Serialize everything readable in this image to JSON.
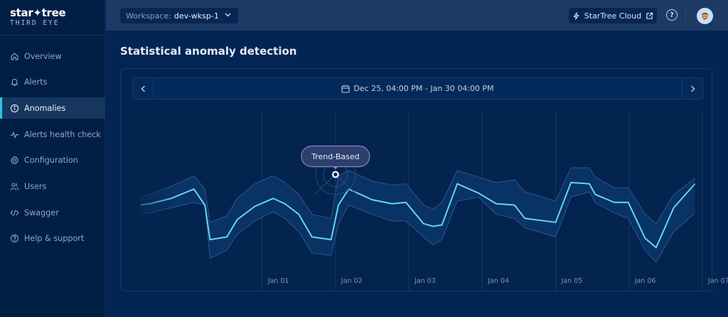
{
  "app": {
    "logo_main": "star✦tree",
    "logo_sub": "THIRD EYE"
  },
  "sidebar": {
    "items": [
      {
        "label": "Overview",
        "icon": "home-icon",
        "active": false
      },
      {
        "label": "Alerts",
        "icon": "bell-icon",
        "active": false
      },
      {
        "label": "Anomalies",
        "icon": "info-circle-icon",
        "active": true
      },
      {
        "label": "Alerts health check",
        "icon": "pulse-icon",
        "active": false
      },
      {
        "label": "Configuration",
        "icon": "gear-icon",
        "active": false
      },
      {
        "label": "Users",
        "icon": "users-icon",
        "active": false
      },
      {
        "label": "Swagger",
        "icon": "code-icon",
        "active": false
      },
      {
        "label": "Help & support",
        "icon": "help-circle-icon",
        "active": false
      }
    ]
  },
  "header": {
    "workspace_label": "Workspace:",
    "workspace_value": "dev-wksp-1",
    "cloud_button_label": "StarTree Cloud",
    "help_icon": "question-circle-icon",
    "avatar_icon": "user-avatar-icon"
  },
  "main": {
    "page_title": "Statistical anomaly detection",
    "date_range": "Dec 25, 04:00 PM - Jan 30 04:00 PM",
    "prev_icon": "chevron-left-icon",
    "next_icon": "chevron-right-icon",
    "calendar_icon": "calendar-icon"
  },
  "colors": {
    "accent_line": "#66d4ec",
    "band_fill": "#0a3566",
    "band_edge": "#2a4f7e",
    "active_indicator": "#2ec4e5",
    "badge_border": "#8b82c4",
    "badge_fill": "#2d3f6e"
  },
  "chart_data": {
    "type": "line",
    "title": "",
    "xlabel": "",
    "ylabel": "",
    "x_unit": "days since Dec 31 00:00",
    "xlim": [
      -0.7,
      6.9
    ],
    "ylim": [
      0,
      100
    ],
    "grid": "vertical",
    "x_ticks": [
      {
        "x": 1,
        "label": "Jan 01"
      },
      {
        "x": 2,
        "label": "Jan 02"
      },
      {
        "x": 3,
        "label": "Jan 03"
      },
      {
        "x": 4,
        "label": "Jan 04"
      },
      {
        "x": 5,
        "label": "Jan 05"
      },
      {
        "x": 6,
        "label": "Jan 06"
      },
      {
        "x": 7,
        "label": "Jan 07"
      }
    ],
    "series": [
      {
        "name": "current",
        "x": [
          -0.66,
          -0.53,
          -0.24,
          0.07,
          0.22,
          0.29,
          0.52,
          0.66,
          0.9,
          1.15,
          1.31,
          1.5,
          1.68,
          1.94,
          2.04,
          2.18,
          2.5,
          2.77,
          2.96,
          3.2,
          3.33,
          3.45,
          3.66,
          3.95,
          4.19,
          4.44,
          4.58,
          5.0,
          5.21,
          5.46,
          5.54,
          5.8,
          5.99,
          6.22,
          6.37,
          6.61,
          6.9
        ],
        "y": [
          50,
          51,
          55,
          62,
          50,
          24,
          26,
          39,
          49,
          55,
          51,
          43,
          26,
          24,
          50,
          62,
          54,
          51,
          52,
          36,
          34,
          35,
          66,
          59,
          51,
          50,
          40,
          37,
          67,
          66,
          58,
          52,
          52,
          25,
          18,
          48,
          66
        ]
      },
      {
        "name": "upper_bound",
        "x": [
          -0.66,
          -0.53,
          -0.24,
          0.07,
          0.22,
          0.29,
          0.52,
          0.66,
          0.9,
          1.15,
          1.31,
          1.5,
          1.68,
          1.94,
          2.04,
          2.18,
          2.5,
          2.77,
          2.96,
          3.2,
          3.33,
          3.45,
          3.66,
          3.95,
          4.19,
          4.44,
          4.58,
          5.0,
          5.21,
          5.46,
          5.54,
          5.8,
          5.99,
          6.22,
          6.37,
          6.61,
          6.9
        ],
        "y": [
          56,
          58,
          64,
          72,
          62,
          37,
          42,
          55,
          66,
          72,
          67,
          58,
          43,
          40,
          72,
          76,
          68,
          65,
          66,
          50,
          47,
          52,
          76,
          71,
          67,
          69,
          60,
          53,
          78,
          78,
          71,
          63,
          63,
          43,
          36,
          58,
          70
        ]
      },
      {
        "name": "lower_bound",
        "x": [
          -0.66,
          -0.53,
          -0.24,
          0.07,
          0.22,
          0.29,
          0.52,
          0.66,
          0.9,
          1.15,
          1.31,
          1.5,
          1.68,
          1.94,
          2.04,
          2.18,
          2.5,
          2.77,
          2.96,
          3.2,
          3.33,
          3.45,
          3.66,
          3.95,
          4.19,
          4.44,
          4.58,
          5.0,
          5.21,
          5.46,
          5.54,
          5.8,
          5.99,
          6.22,
          6.37,
          6.61,
          6.9
        ],
        "y": [
          44,
          44,
          48,
          52,
          50,
          10,
          16,
          28,
          38,
          45,
          40,
          30,
          14,
          12,
          36,
          50,
          43,
          38,
          38,
          26,
          20,
          24,
          53,
          56,
          43,
          40,
          33,
          26,
          56,
          60,
          52,
          44,
          40,
          16,
          7,
          30,
          44
        ]
      }
    ],
    "annotations": [
      {
        "label": "Trend-Based",
        "x": 2.0,
        "y": 73,
        "type": "anomaly-marker"
      }
    ]
  }
}
